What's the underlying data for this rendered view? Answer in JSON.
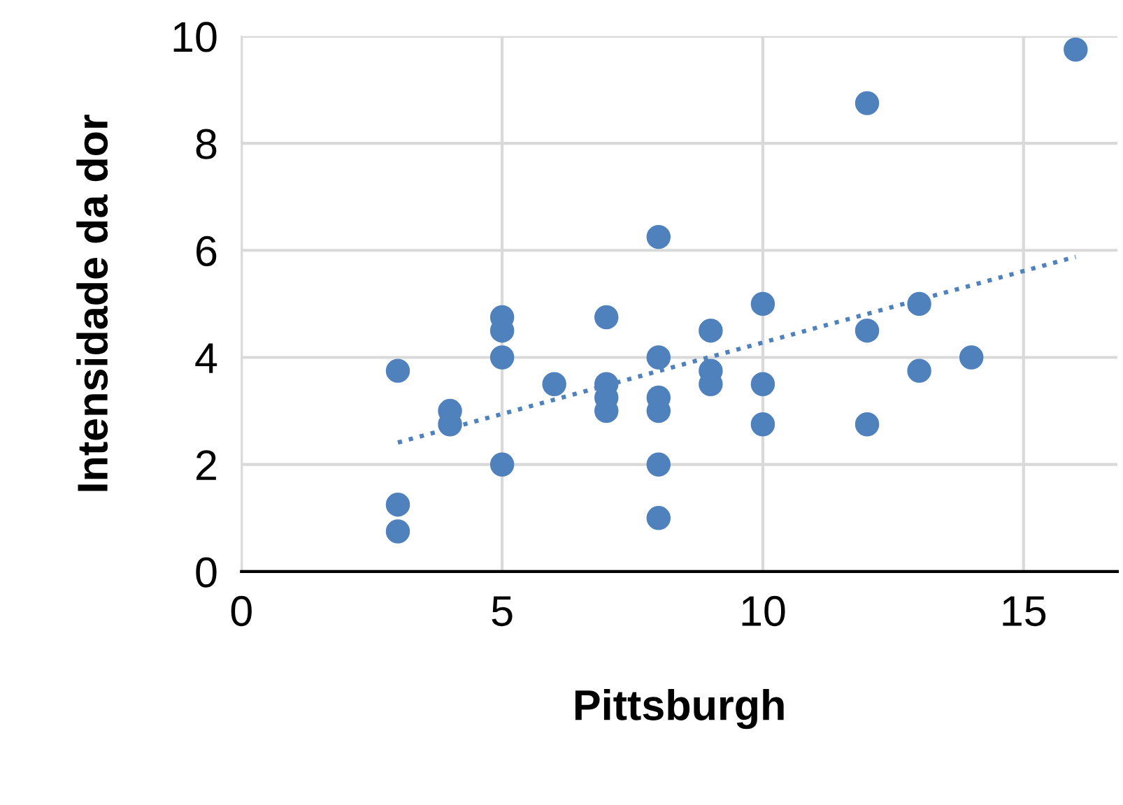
{
  "chart_data": {
    "type": "scatter",
    "xlabel": "Pittsburgh",
    "ylabel": "Intensidade da dor",
    "xlim": [
      0,
      16.8
    ],
    "ylim": [
      0,
      10
    ],
    "xticks": [
      0,
      5,
      10,
      15
    ],
    "yticks": [
      0,
      2,
      4,
      6,
      8,
      10
    ],
    "grid": true,
    "legend": false,
    "series": [
      {
        "color": "#4f81bd",
        "marker": "circle",
        "x": [
          3,
          3,
          3,
          4,
          4,
          5,
          5,
          5,
          5,
          6,
          7,
          7,
          7,
          7,
          8,
          8,
          8,
          8,
          8,
          8,
          9,
          9,
          9,
          10,
          10,
          10,
          12,
          12,
          12,
          13,
          13,
          14,
          16
        ],
        "values": [
          3.75,
          1.25,
          0.75,
          3,
          2.75,
          4.75,
          4.5,
          4,
          2,
          3.5,
          4.75,
          3.5,
          3.25,
          3,
          6.25,
          4,
          3.25,
          3,
          2,
          1,
          4.5,
          3.75,
          3.5,
          5,
          3.5,
          2.75,
          8.75,
          4.5,
          2.75,
          5,
          3.75,
          4,
          9.75
        ]
      },
      {
        "type": "line",
        "color": "#4f81bd",
        "marker": "none",
        "line_style": "dotted",
        "x": [
          3,
          16
        ],
        "values": [
          2.41,
          5.88
        ]
      }
    ]
  }
}
